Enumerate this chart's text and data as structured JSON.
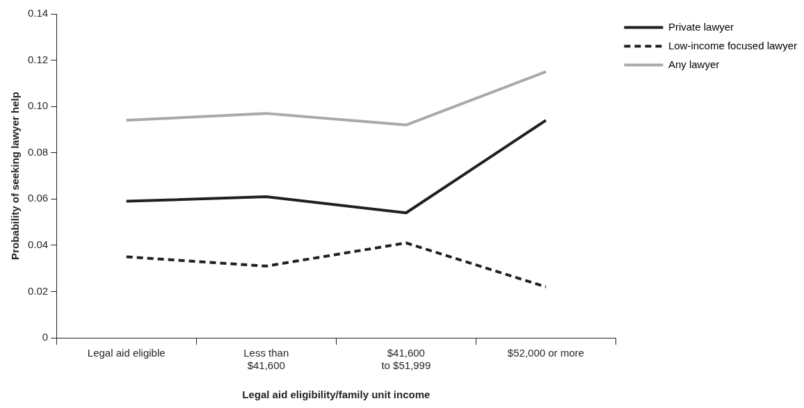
{
  "chart_data": {
    "type": "line",
    "xlabel": "Legal aid eligibility/family unit income",
    "ylabel": "Probability of seeking lawyer help",
    "categories": [
      "Legal aid eligible",
      "Less than\n$41,600",
      "$41,600\nto $51,999",
      "$52,000 or more"
    ],
    "series": [
      {
        "name": "Private lawyer",
        "color": "#231f20",
        "line_style": "solid",
        "values": [
          0.059,
          0.061,
          0.054,
          0.094
        ]
      },
      {
        "name": "Low-income focused lawyer",
        "color": "#231f20",
        "line_style": "dashed",
        "values": [
          0.035,
          0.031,
          0.041,
          0.022
        ]
      },
      {
        "name": "Any lawyer",
        "color": "#a7a9ac",
        "line_style": "solid",
        "values": [
          0.094,
          0.097,
          0.092,
          0.115
        ]
      }
    ],
    "ylim": [
      0,
      0.14
    ],
    "yticks": [
      0,
      0.02,
      0.04,
      0.06,
      0.08,
      {
        "value": 0.1,
        "label": "0.10"
      },
      0.12,
      0.14
    ],
    "grid": false,
    "legend": "top right",
    "marker": "none"
  }
}
